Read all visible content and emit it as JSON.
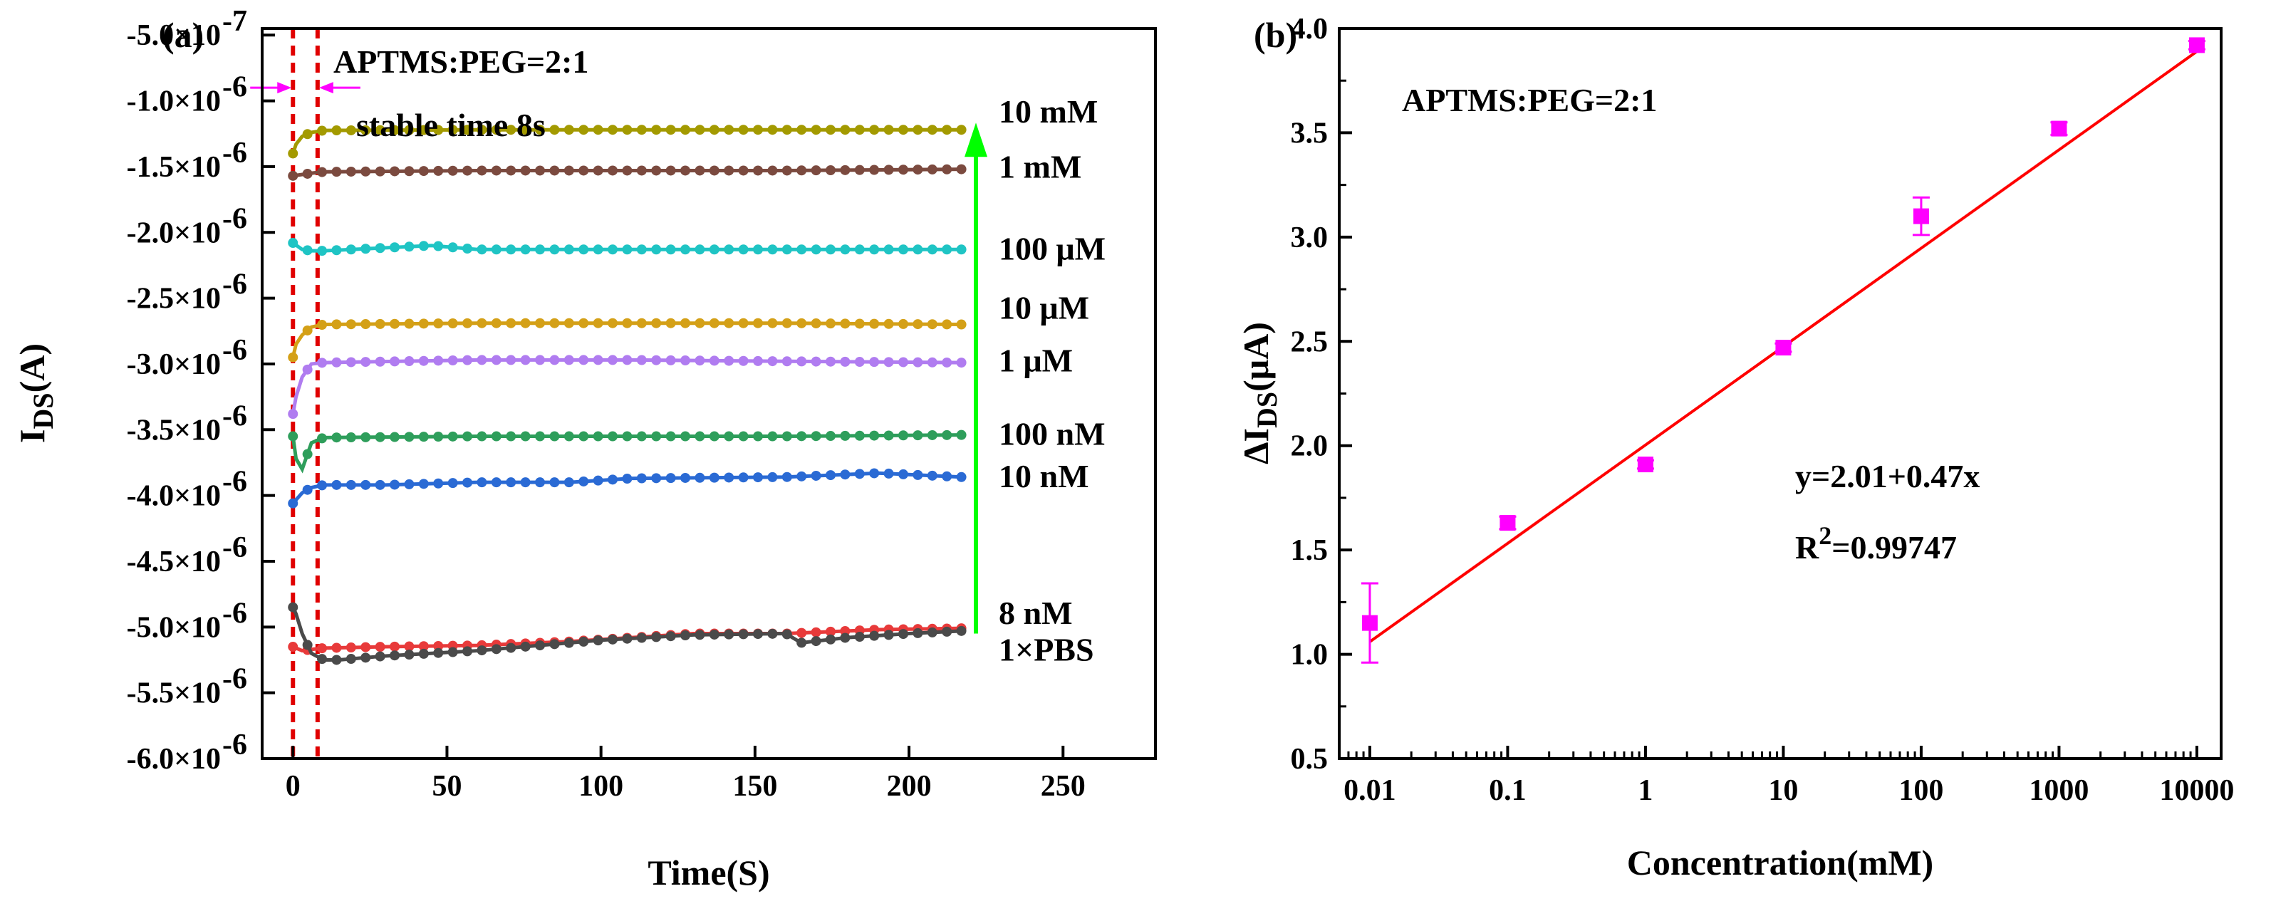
{
  "chart_data": [
    {
      "panel": "(a)",
      "type": "line",
      "title": "",
      "xlabel": "Time(S)",
      "ylabel": "I",
      "ylabel_sub": "DS",
      "ylabel_suffix": "(A)",
      "xlim": [
        -10,
        280
      ],
      "ylim": [
        -6e-06,
        -4.5e-07
      ],
      "x_ticks": [
        0,
        50,
        100,
        150,
        200,
        250
      ],
      "x_tick_labels": [
        "0",
        "50",
        "100",
        "150",
        "200",
        "250"
      ],
      "y_ticks": [
        -5e-07,
        -1e-06,
        -1.5e-06,
        -2e-06,
        -2.5e-06,
        -3e-06,
        -3.5e-06,
        -4e-06,
        -4.5e-06,
        -5e-06,
        -5.5e-06,
        -6e-06
      ],
      "y_tick_labels": [
        "-5.0×10",
        "-1.0×10",
        "-1.5×10",
        "-2.0×10",
        "-2.5×10",
        "-3.0×10",
        "-3.5×10",
        "-4.0×10",
        "-4.5×10",
        "-5.0×10",
        "-5.5×10",
        "-6.0×10"
      ],
      "y_tick_exponents": [
        "-7",
        "-6",
        "-6",
        "-6",
        "-6",
        "-6",
        "-6",
        "-6",
        "-6",
        "-6",
        "-6",
        "-6"
      ],
      "annotation_title": "APTMS:PEG=2:1",
      "annotation_stable": "stable  time  8s",
      "stable_lines_x": [
        0,
        8
      ],
      "arrow_color": "#00ff00",
      "marker_color": "#ff00ff",
      "series": [
        {
          "name": "10 mM",
          "color": "#a39a00",
          "x": [
            0,
            1,
            3,
            6,
            10,
            60,
            110,
            160,
            217
          ],
          "values": [
            -1.4e-06,
            -1.33e-06,
            -1.27e-06,
            -1.24e-06,
            -1.225e-06,
            -1.22e-06,
            -1.22e-06,
            -1.22e-06,
            -1.22e-06
          ]
        },
        {
          "name": "1 mM",
          "color": "#7b4a3f",
          "x": [
            0,
            3,
            6,
            10,
            60,
            110,
            160,
            217
          ],
          "values": [
            -1.57e-06,
            -1.56e-06,
            -1.55e-06,
            -1.54e-06,
            -1.53e-06,
            -1.53e-06,
            -1.53e-06,
            -1.52e-06
          ]
        },
        {
          "name": "100 μM",
          "color": "#1fc4c4",
          "x": [
            0,
            3,
            6,
            10,
            45,
            60,
            110,
            160,
            217
          ],
          "values": [
            -2.08e-06,
            -2.13e-06,
            -2.14e-06,
            -2.14e-06,
            -2.1e-06,
            -2.13e-06,
            -2.13e-06,
            -2.13e-06,
            -2.13e-06
          ]
        },
        {
          "name": "10 μM",
          "color": "#d4a017",
          "x": [
            0,
            1,
            3,
            6,
            10,
            60,
            110,
            160,
            217
          ],
          "values": [
            -2.95e-06,
            -2.85e-06,
            -2.78e-06,
            -2.72e-06,
            -2.7e-06,
            -2.69e-06,
            -2.69e-06,
            -2.69e-06,
            -2.7e-06
          ]
        },
        {
          "name": "1 μM",
          "color": "#b07cf0",
          "x": [
            0,
            1,
            3,
            6,
            10,
            60,
            110,
            160,
            217
          ],
          "values": [
            -3.38e-06,
            -3.25e-06,
            -3.1e-06,
            -3e-06,
            -2.99e-06,
            -2.97e-06,
            -2.97e-06,
            -2.98e-06,
            -2.99e-06
          ]
        },
        {
          "name": "100 nM",
          "color": "#2e9e5b",
          "x": [
            0,
            1,
            3,
            6,
            10,
            60,
            110,
            160,
            217
          ],
          "values": [
            -3.55e-06,
            -3.72e-06,
            -3.8e-06,
            -3.6e-06,
            -3.56e-06,
            -3.55e-06,
            -3.55e-06,
            -3.55e-06,
            -3.54e-06
          ]
        },
        {
          "name": "10 nM",
          "color": "#2a6ad4",
          "x": [
            0,
            3,
            6,
            10,
            30,
            60,
            90,
            110,
            160,
            190,
            217
          ],
          "values": [
            -4.06e-06,
            -3.98e-06,
            -3.94e-06,
            -3.92e-06,
            -3.92e-06,
            -3.9e-06,
            -3.9e-06,
            -3.87e-06,
            -3.86e-06,
            -3.83e-06,
            -3.86e-06
          ]
        },
        {
          "name": "8 nM",
          "color": "#e83a3a",
          "x": [
            0,
            3,
            6,
            10,
            30,
            60,
            90,
            110,
            130,
            160,
            190,
            217
          ],
          "values": [
            -5.15e-06,
            -5.18e-06,
            -5.17e-06,
            -5.16e-06,
            -5.15e-06,
            -5.14e-06,
            -5.11e-06,
            -5.08e-06,
            -5.05e-06,
            -5.05e-06,
            -5.02e-06,
            -5.01e-06
          ]
        },
        {
          "name": "1×PBS",
          "color": "#4a4a4a",
          "x": [
            0,
            1,
            3,
            6,
            10,
            15,
            30,
            60,
            100,
            130,
            160,
            165,
            180,
            200,
            217
          ],
          "values": [
            -4.85e-06,
            -4.9e-06,
            -5.05e-06,
            -5.2e-06,
            -5.25e-06,
            -5.25e-06,
            -5.22e-06,
            -5.18e-06,
            -5.1e-06,
            -5.06e-06,
            -5.05e-06,
            -5.12e-06,
            -5.08e-06,
            -5.05e-06,
            -5.03e-06
          ]
        }
      ]
    },
    {
      "panel": "(b)",
      "type": "scatter",
      "title": "",
      "xlabel": "Concentration(mM)",
      "ylabel": "ΔI",
      "ylabel_sub": "DS",
      "ylabel_suffix": "(μA)",
      "xscale": "log",
      "xlim": [
        0.006,
        15000
      ],
      "ylim": [
        0.5,
        4.0
      ],
      "x_ticks": [
        0.01,
        0.1,
        1,
        10,
        100,
        1000,
        10000
      ],
      "x_tick_labels": [
        "0.01",
        "0.1",
        "1",
        "10",
        "100",
        "1000",
        "10000"
      ],
      "y_ticks": [
        0.5,
        1.0,
        1.5,
        2.0,
        2.5,
        3.0,
        3.5,
        4.0
      ],
      "y_tick_labels": [
        "0.5",
        "1.0",
        "1.5",
        "2.0",
        "2.5",
        "3.0",
        "3.5",
        "4.0"
      ],
      "annotation_title": "APTMS:PEG=2:1",
      "equation": "y=2.01+0.47x",
      "r2_prefix": "R",
      "r2_sup": "2",
      "r2_value": "=0.99747",
      "point_color": "#ff00ff",
      "fit_color": "#ff0000",
      "fit": {
        "intercept": 2.01,
        "slope": 0.47
      },
      "points": {
        "x": [
          0.01,
          0.1,
          1,
          10,
          100,
          1000,
          10000
        ],
        "y": [
          1.15,
          1.63,
          1.91,
          2.47,
          3.1,
          3.52,
          3.92
        ],
        "err": [
          0.19,
          0.03,
          0.02,
          0.02,
          0.09,
          0.03,
          0.02
        ]
      }
    }
  ]
}
